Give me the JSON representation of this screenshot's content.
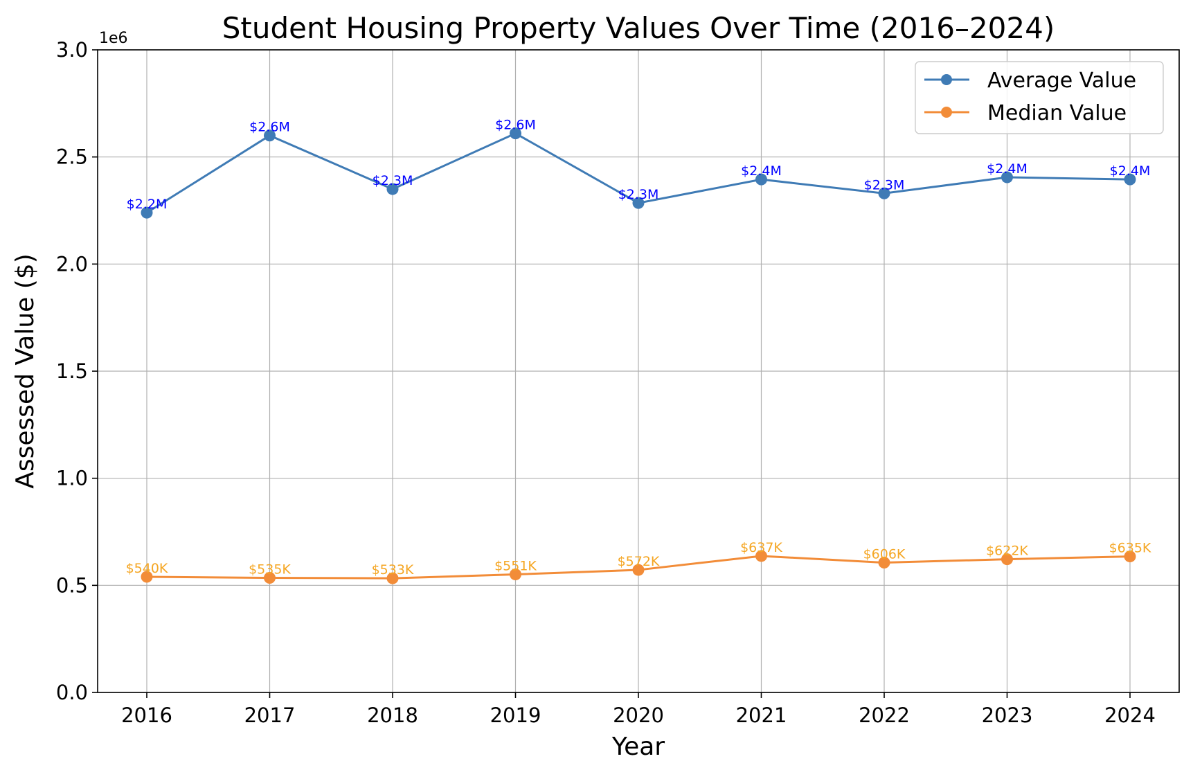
{
  "chart_data": {
    "type": "line",
    "title": "Student Housing Property Values Over Time (2016–2024)",
    "xlabel": "Year",
    "ylabel": "Assessed Value ($)",
    "y_offset_label": "1e6",
    "x": [
      2016,
      2017,
      2018,
      2019,
      2020,
      2021,
      2022,
      2023,
      2024
    ],
    "x_tick_labels": [
      "2016",
      "2017",
      "2018",
      "2019",
      "2020",
      "2021",
      "2022",
      "2023",
      "2024"
    ],
    "ylim": [
      0,
      3000000
    ],
    "y_ticks": [
      0,
      500000,
      1000000,
      1500000,
      2000000,
      2500000,
      3000000
    ],
    "y_tick_labels": [
      "0.0",
      "0.5",
      "1.0",
      "1.5",
      "2.0",
      "2.5",
      "3.0"
    ],
    "grid": true,
    "legend_position": "top-right",
    "series": [
      {
        "name": "Average Value",
        "color": "#3f7bb5",
        "label_color": "#0000ff",
        "values": [
          2240000,
          2600000,
          2350000,
          2610000,
          2285000,
          2395000,
          2330000,
          2405000,
          2395000
        ],
        "data_labels": [
          "$2.2M",
          "$2.6M",
          "$2.3M",
          "$2.6M",
          "$2.3M",
          "$2.4M",
          "$2.3M",
          "$2.4M",
          "$2.4M"
        ]
      },
      {
        "name": "Median Value",
        "color": "#f28c38",
        "label_color": "#f5a623",
        "values": [
          540000,
          535000,
          533000,
          551000,
          572000,
          637000,
          606000,
          622000,
          635000
        ],
        "data_labels": [
          "$540K",
          "$535K",
          "$533K",
          "$551K",
          "$572K",
          "$637K",
          "$606K",
          "$622K",
          "$635K"
        ]
      }
    ]
  }
}
